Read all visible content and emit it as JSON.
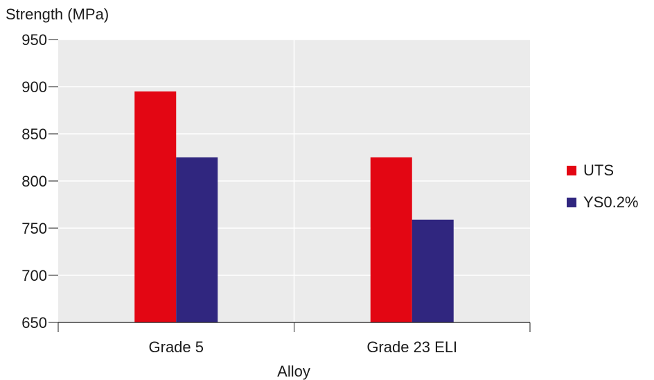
{
  "chart_data": {
    "type": "bar",
    "categories": [
      "Grade 5",
      "Grade 23 ELI"
    ],
    "series": [
      {
        "name": "UTS",
        "values": [
          895,
          825
        ],
        "color": "#e30613"
      },
      {
        "name": "YS0.2%",
        "values": [
          825,
          759
        ],
        "color": "#30267f"
      }
    ],
    "ylabel": "Strength (MPa)",
    "xlabel": "Alloy",
    "ylim": [
      650,
      950
    ],
    "yticks": [
      650,
      700,
      750,
      800,
      850,
      900,
      950
    ],
    "grid": true,
    "plot_background": "#ebebeb",
    "legend_position": "right"
  }
}
